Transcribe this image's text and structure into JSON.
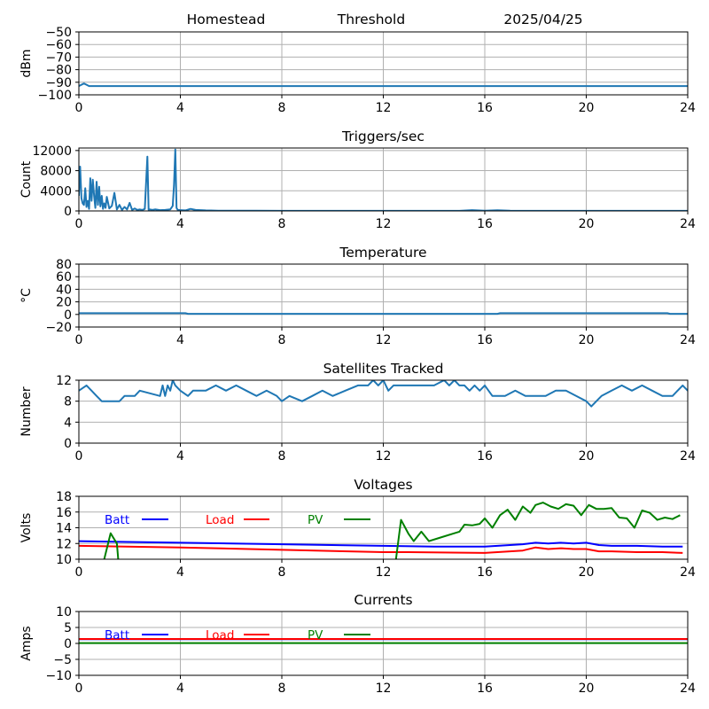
{
  "header": {
    "site": "Homestead",
    "mode": "Threshold",
    "date": "2025/04/25"
  },
  "colors": {
    "series_default": "#1f77b4",
    "batt": "#0000ff",
    "load": "#ff0000",
    "pv": "#008000",
    "grid": "#b0b0b0"
  },
  "chart_data": [
    {
      "id": "noise",
      "type": "line",
      "title": "",
      "ylabel": "dBm",
      "xlim": [
        0,
        24
      ],
      "xticks": [
        0,
        4,
        8,
        12,
        16,
        20,
        24
      ],
      "ylim": [
        -100,
        -50
      ],
      "yticks": [
        -100,
        -90,
        -80,
        -70,
        -60,
        -50
      ],
      "grid": true,
      "series": [
        {
          "name": "",
          "color": "#1f77b4",
          "x": [
            0,
            0.1,
            0.2,
            0.3,
            0.4,
            24
          ],
          "y": [
            -93,
            -92,
            -91,
            -92,
            -93,
            -93
          ]
        }
      ]
    },
    {
      "id": "triggers",
      "type": "line",
      "title": "Triggers/sec",
      "ylabel": "Count",
      "xlim": [
        0,
        24
      ],
      "xticks": [
        0,
        4,
        8,
        12,
        16,
        20,
        24
      ],
      "ylim": [
        0,
        12500
      ],
      "yticks": [
        0,
        4000,
        8000,
        12000
      ],
      "grid": true,
      "series": [
        {
          "name": "",
          "color": "#1f77b4",
          "x": [
            0,
            0.05,
            0.1,
            0.15,
            0.2,
            0.25,
            0.3,
            0.35,
            0.4,
            0.45,
            0.5,
            0.55,
            0.6,
            0.65,
            0.7,
            0.75,
            0.8,
            0.85,
            0.9,
            0.95,
            1.0,
            1.05,
            1.1,
            1.2,
            1.3,
            1.4,
            1.5,
            1.6,
            1.7,
            1.8,
            1.9,
            2.0,
            2.1,
            2.2,
            2.3,
            2.4,
            2.5,
            2.6,
            2.7,
            2.75,
            2.8,
            2.9,
            3.0,
            3.2,
            3.4,
            3.6,
            3.7,
            3.75,
            3.8,
            3.85,
            3.9,
            4.0,
            4.2,
            4.4,
            4.6,
            4.8,
            5.0,
            5.2,
            5.5,
            6.0,
            7.0,
            8.0,
            10.0,
            12.0,
            15.0,
            15.5,
            16.0,
            16.5,
            17.0,
            20.0,
            22.0,
            24.0
          ],
          "y": [
            3000,
            8800,
            2500,
            1500,
            1200,
            4500,
            800,
            2000,
            400,
            6500,
            2000,
            6200,
            3000,
            600,
            5800,
            1200,
            4800,
            900,
            3000,
            400,
            1500,
            600,
            2800,
            500,
            1000,
            3600,
            300,
            1200,
            200,
            800,
            300,
            1600,
            200,
            500,
            200,
            300,
            200,
            400,
            10800,
            200,
            300,
            200,
            300,
            150,
            200,
            300,
            1000,
            5000,
            12200,
            600,
            200,
            150,
            100,
            400,
            200,
            150,
            100,
            80,
            60,
            40,
            30,
            20,
            15,
            10,
            15,
            150,
            50,
            120,
            30,
            20,
            10,
            10
          ]
        }
      ]
    },
    {
      "id": "temperature",
      "type": "line",
      "title": "Temperature",
      "ylabel": "°C",
      "xlim": [
        0,
        24
      ],
      "xticks": [
        0,
        4,
        8,
        12,
        16,
        20,
        24
      ],
      "ylim": [
        -20,
        80
      ],
      "yticks": [
        -20,
        0,
        20,
        40,
        60,
        80
      ],
      "grid": true,
      "series": [
        {
          "name": "",
          "color": "#1f77b4",
          "x": [
            0,
            4.2,
            4.3,
            16.5,
            16.6,
            23.2,
            23.3,
            24
          ],
          "y": [
            2,
            2,
            1,
            1,
            2,
            2,
            1,
            1
          ]
        }
      ]
    },
    {
      "id": "satellites",
      "type": "line",
      "title": "Satellites Tracked",
      "ylabel": "Number",
      "xlim": [
        0,
        24
      ],
      "xticks": [
        0,
        4,
        8,
        12,
        16,
        20,
        24
      ],
      "ylim": [
        0,
        12
      ],
      "yticks": [
        0,
        4,
        8,
        12
      ],
      "grid": true,
      "series": [
        {
          "name": "",
          "color": "#1f77b4",
          "x": [
            0,
            0.3,
            0.5,
            0.7,
            0.9,
            1.6,
            1.8,
            2.2,
            2.4,
            3.2,
            3.3,
            3.4,
            3.5,
            3.6,
            3.7,
            3.8,
            4.0,
            4.3,
            4.5,
            5.0,
            5.4,
            5.8,
            6.2,
            6.6,
            7.0,
            7.4,
            7.8,
            8.0,
            8.3,
            8.8,
            9.2,
            9.6,
            10.0,
            10.5,
            11.0,
            11.4,
            11.6,
            11.8,
            12.0,
            12.2,
            12.4,
            13.0,
            14.0,
            14.4,
            14.6,
            14.8,
            15.0,
            15.2,
            15.4,
            15.6,
            15.8,
            16.0,
            16.3,
            16.8,
            17.2,
            17.6,
            18.0,
            18.4,
            18.8,
            19.2,
            19.6,
            20.0,
            20.2,
            20.4,
            20.6,
            21.0,
            21.4,
            21.8,
            22.2,
            22.6,
            23.0,
            23.4,
            23.8,
            24.0
          ],
          "y": [
            10,
            11,
            10,
            9,
            8,
            8,
            9,
            9,
            10,
            9,
            11,
            9,
            11,
            10,
            12,
            11,
            10,
            9,
            10,
            10,
            11,
            10,
            11,
            10,
            9,
            10,
            9,
            8,
            9,
            8,
            9,
            10,
            9,
            10,
            11,
            11,
            12,
            11,
            12,
            10,
            11,
            11,
            11,
            12,
            11,
            12,
            11,
            11,
            10,
            11,
            10,
            11,
            9,
            9,
            10,
            9,
            9,
            9,
            10,
            10,
            9,
            8,
            7,
            8,
            9,
            10,
            11,
            10,
            11,
            10,
            9,
            9,
            11,
            10
          ]
        }
      ]
    },
    {
      "id": "voltages",
      "type": "line",
      "title": "Voltages",
      "ylabel": "Volts",
      "xlim": [
        0,
        24
      ],
      "xticks": [
        0,
        4,
        8,
        12,
        16,
        20,
        24
      ],
      "ylim": [
        10,
        18
      ],
      "yticks": [
        10,
        12,
        14,
        16,
        18
      ],
      "grid": true,
      "legend": "top-left",
      "series": [
        {
          "name": "Batt",
          "color": "#0000ff",
          "x": [
            0,
            4,
            8,
            12,
            14,
            16,
            16.5,
            17,
            17.5,
            18,
            18.5,
            19,
            19.5,
            20,
            20.5,
            21,
            22,
            23,
            23.8
          ],
          "y": [
            12.3,
            12.1,
            11.9,
            11.7,
            11.6,
            11.6,
            11.7,
            11.8,
            11.9,
            12.1,
            12.0,
            12.1,
            12.0,
            12.1,
            11.8,
            11.7,
            11.7,
            11.6,
            11.6
          ]
        },
        {
          "name": "Load",
          "color": "#ff0000",
          "x": [
            0,
            4,
            8,
            12,
            13,
            16,
            16.5,
            17,
            17.5,
            18,
            18.5,
            19,
            19.5,
            20,
            20.5,
            21,
            22,
            23,
            23.8
          ],
          "y": [
            11.7,
            11.5,
            11.2,
            10.9,
            10.9,
            10.8,
            10.9,
            11.0,
            11.1,
            11.5,
            11.3,
            11.4,
            11.3,
            11.3,
            11.0,
            11.0,
            10.9,
            10.9,
            10.8
          ]
        },
        {
          "name": "PV",
          "color": "#008000",
          "x": [
            1.0,
            1.25,
            1.5,
            1.55,
            1.6,
            12.5,
            12.7,
            13.0,
            13.2,
            13.5,
            13.8,
            14.2,
            14.7,
            15.0,
            15.2,
            15.5,
            15.8,
            16.0,
            16.3,
            16.6,
            16.9,
            17.2,
            17.5,
            17.8,
            18.0,
            18.3,
            18.6,
            18.9,
            19.2,
            19.5,
            19.8,
            20.1,
            20.4,
            20.7,
            21.0,
            21.3,
            21.6,
            21.9,
            22.2,
            22.5,
            22.8,
            23.1,
            23.4,
            23.7
          ],
          "y": [
            10.0,
            13.3,
            12.0,
            10.0,
            null,
            10.0,
            15.0,
            13.2,
            12.3,
            13.5,
            12.3,
            12.7,
            13.2,
            13.5,
            14.4,
            14.3,
            14.5,
            15.2,
            14.0,
            15.6,
            16.3,
            15.0,
            16.7,
            15.9,
            16.9,
            17.2,
            16.7,
            16.4,
            17.0,
            16.8,
            15.6,
            16.9,
            16.4,
            16.4,
            16.5,
            15.3,
            15.2,
            14.0,
            16.2,
            15.9,
            15.0,
            15.3,
            15.1,
            15.6
          ]
        }
      ]
    },
    {
      "id": "currents",
      "type": "line",
      "title": "Currents",
      "ylabel": "Amps",
      "xlim": [
        0,
        24
      ],
      "xticks": [
        0,
        4,
        8,
        12,
        16,
        20,
        24
      ],
      "ylim": [
        -10,
        10
      ],
      "yticks": [
        -10,
        -5,
        0,
        5,
        10
      ],
      "grid": true,
      "legend": "top-left",
      "series": [
        {
          "name": "Batt",
          "color": "#0000ff",
          "x": [
            0,
            24
          ],
          "y": [
            1.3,
            1.3
          ]
        },
        {
          "name": "Load",
          "color": "#ff0000",
          "x": [
            0,
            24
          ],
          "y": [
            1.4,
            1.4
          ]
        },
        {
          "name": "PV",
          "color": "#008000",
          "x": [
            0,
            24
          ],
          "y": [
            0.1,
            0.1
          ]
        }
      ]
    }
  ]
}
